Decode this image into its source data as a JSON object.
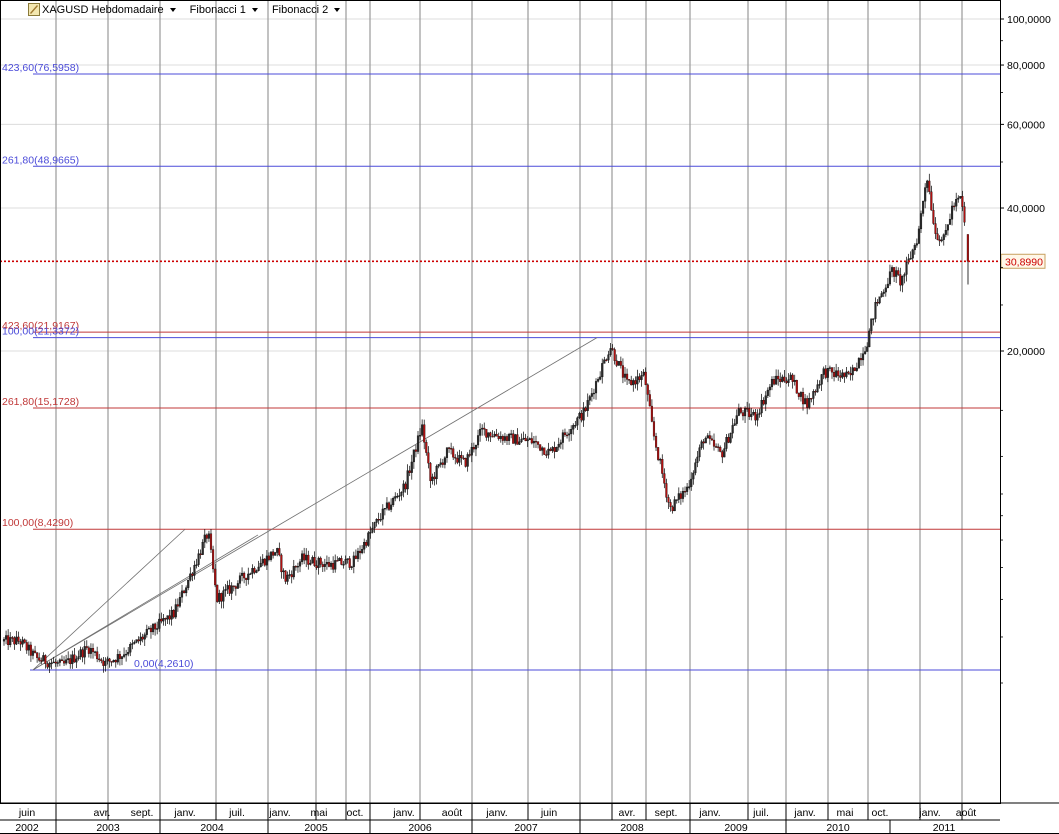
{
  "toolbar": {
    "symbol": "XAGUSD Hebdomadaire",
    "menus": [
      "Fibonacci 1",
      "Fibonacci 2"
    ]
  },
  "colors": {
    "blue_fib": "#4b4bd9",
    "red_fib": "#c03838",
    "price_line": "#cc0000",
    "candle_up": "#2a2a2a",
    "candle_down": "#b01010",
    "grid": "#9a9a9a",
    "trendline": "#707070"
  },
  "chart_data": {
    "type": "candlestick",
    "y_scale": "log",
    "y_ticks": [
      "100,0000",
      "80,0000",
      "60,0000",
      "40,0000",
      "20,0000"
    ],
    "current_price": "30,8990",
    "fib_levels": [
      {
        "label": "423,60(76,5958)",
        "price": 76.5958,
        "set": "blue"
      },
      {
        "label": "261,80(48,9665)",
        "price": 48.9665,
        "set": "blue"
      },
      {
        "label": "423,60(21,9167)",
        "price": 21.9167,
        "set": "red"
      },
      {
        "label": "100,00(21,3372)",
        "price": 21.3372,
        "set": "blue"
      },
      {
        "label": "261,80(15,1728)",
        "price": 15.1728,
        "set": "red"
      },
      {
        "label": "100,00(8,4290)",
        "price": 8.429,
        "set": "red"
      },
      {
        "label": "0,00(4,2610)",
        "price": 4.261,
        "set": "blue"
      }
    ],
    "x_months": [
      "juin",
      "avr.",
      "sept.",
      "janv.",
      "juil.",
      "janv.",
      "mai",
      "oct.",
      "janv.",
      "août",
      "janv.",
      "juin",
      "avr.",
      "sept.",
      "janv.",
      "juil.",
      "janv.",
      "mai",
      "oct.",
      "janv.",
      "août"
    ],
    "x_years": [
      "2002",
      "2003",
      "2004",
      "2005",
      "2006",
      "2007",
      "2008",
      "2009",
      "2010",
      "2011"
    ],
    "price_path": [
      [
        "2002-06",
        4.9
      ],
      [
        "2002-08",
        4.5
      ],
      [
        "2002-11",
        4.35
      ],
      [
        "2003-02",
        4.75
      ],
      [
        "2003-04",
        4.4
      ],
      [
        "2003-06",
        4.6
      ],
      [
        "2003-09",
        5.1
      ],
      [
        "2003-12",
        5.6
      ],
      [
        "2004-02",
        6.8
      ],
      [
        "2004-04",
        8.3
      ],
      [
        "2004-05",
        6.0
      ],
      [
        "2004-07",
        6.4
      ],
      [
        "2004-09",
        6.9
      ],
      [
        "2004-12",
        7.6
      ],
      [
        "2005-01",
        6.6
      ],
      [
        "2005-03",
        7.3
      ],
      [
        "2005-06",
        7.1
      ],
      [
        "2005-09",
        7.2
      ],
      [
        "2005-12",
        8.9
      ],
      [
        "2006-03",
        10.4
      ],
      [
        "2006-05",
        13.9
      ],
      [
        "2006-06",
        10.6
      ],
      [
        "2006-08",
        12.3
      ],
      [
        "2006-10",
        11.6
      ],
      [
        "2006-12",
        13.6
      ],
      [
        "2007-03",
        13.1
      ],
      [
        "2007-06",
        12.9
      ],
      [
        "2007-08",
        12.2
      ],
      [
        "2007-10",
        13.6
      ],
      [
        "2007-12",
        14.9
      ],
      [
        "2008-03",
        20.5
      ],
      [
        "2008-05",
        17.0
      ],
      [
        "2008-07",
        17.8
      ],
      [
        "2008-08",
        13.5
      ],
      [
        "2008-10",
        9.3
      ],
      [
        "2008-12",
        10.3
      ],
      [
        "2009-02",
        13.2
      ],
      [
        "2009-04",
        12.1
      ],
      [
        "2009-06",
        14.9
      ],
      [
        "2009-08",
        14.6
      ],
      [
        "2009-10",
        17.3
      ],
      [
        "2009-12",
        17.6
      ],
      [
        "2010-02",
        15.4
      ],
      [
        "2010-04",
        18.1
      ],
      [
        "2010-07",
        17.6
      ],
      [
        "2010-09",
        20.8
      ],
      [
        "2010-10",
        24.8
      ],
      [
        "2010-12",
        29.6
      ],
      [
        "2011-01",
        27.9
      ],
      [
        "2011-03",
        35.0
      ],
      [
        "2011-04",
        47.2
      ],
      [
        "2011-05",
        35.5
      ],
      [
        "2011-06",
        34.2
      ],
      [
        "2011-07",
        40.2
      ],
      [
        "2011-08",
        42.0
      ],
      [
        "2011-09",
        30.9
      ]
    ]
  }
}
